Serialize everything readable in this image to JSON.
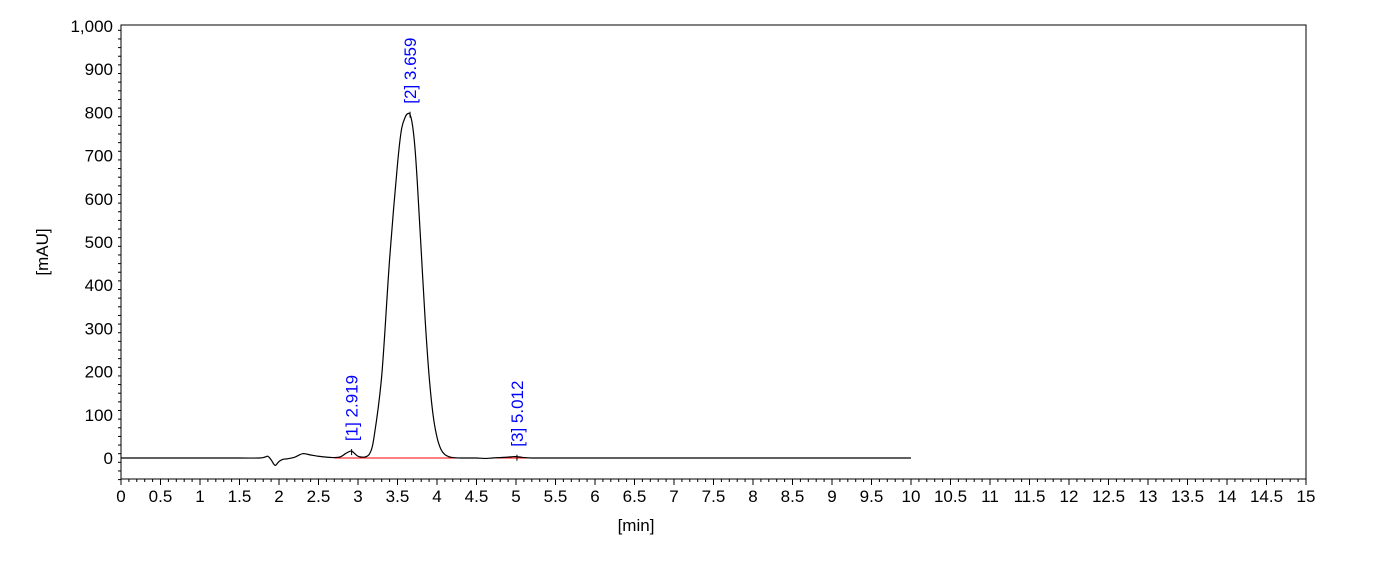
{
  "chart_data": {
    "type": "line",
    "title": "",
    "xlabel": "[min]",
    "ylabel": "[mAU]",
    "xlim": [
      0,
      15
    ],
    "ylim": [
      -50,
      1000
    ],
    "x_ticks": [
      "0",
      "0.5",
      "1",
      "1.5",
      "2",
      "2.5",
      "3",
      "3.5",
      "4",
      "4.5",
      "5",
      "5.5",
      "6",
      "6.5",
      "7",
      "7.5",
      "8",
      "8.5",
      "9",
      "9.5",
      "10",
      "10.5",
      "11",
      "11.5",
      "12",
      "12.5",
      "13",
      "13.5",
      "14",
      "14.5",
      "15"
    ],
    "y_ticks": [
      "0",
      "100",
      "200",
      "300",
      "400",
      "500",
      "600",
      "700",
      "800",
      "900",
      "1,000"
    ],
    "y_tick_values": [
      0,
      100,
      200,
      300,
      400,
      500,
      600,
      700,
      800,
      900,
      1000
    ],
    "grid": false,
    "colors": {
      "trace": "#000000",
      "baseline": "#ff0000",
      "peak_label": "#0000ff",
      "frame": "#000000"
    },
    "series": [
      {
        "x": [
          0,
          0.5,
          1,
          1.5,
          1.75,
          1.82,
          1.86,
          1.9,
          1.95,
          2.0,
          2.05,
          2.1,
          2.2,
          2.3,
          2.4,
          2.5,
          2.6,
          2.7,
          2.78,
          2.84,
          2.88,
          2.919,
          2.96,
          3.0,
          3.05,
          3.1,
          3.15,
          3.2,
          3.3,
          3.4,
          3.5,
          3.55,
          3.6,
          3.63,
          3.659,
          3.69,
          3.72,
          3.75,
          3.8,
          3.85,
          3.9,
          3.95,
          4.0,
          4.05,
          4.1,
          4.15,
          4.2,
          4.3,
          4.4,
          4.5,
          4.6,
          4.7,
          4.8,
          4.9,
          4.96,
          5.012,
          5.06,
          5.1,
          5.2,
          5.3,
          5.5,
          6,
          7,
          8,
          9,
          10
        ],
        "y": [
          0,
          0,
          0,
          0,
          0,
          2,
          4,
          -4,
          -17,
          -8,
          -3,
          -2,
          2,
          10,
          7,
          4,
          2,
          1,
          3,
          10,
          14,
          16,
          10,
          4,
          2,
          3,
          11,
          45,
          190,
          460,
          680,
          760,
          790,
          797,
          795,
          770,
          720,
          640,
          480,
          320,
          190,
          100,
          48,
          20,
          8,
          3,
          1,
          0,
          0,
          0,
          -1,
          0,
          1,
          2,
          3,
          3,
          2,
          1,
          0,
          0,
          0,
          0,
          0,
          0,
          0,
          0
        ]
      }
    ],
    "baseline_segments": [
      {
        "x": [
          2.7,
          4.3
        ]
      },
      {
        "x": [
          4.75,
          5.6
        ]
      }
    ],
    "peaks": [
      {
        "label": "[1]  2.919",
        "x": 2.919,
        "y": 16
      },
      {
        "label": "[2]  3.659",
        "x": 3.659,
        "y": 797
      },
      {
        "label": "[3]  5.012",
        "x": 5.012,
        "y": 3
      }
    ]
  }
}
